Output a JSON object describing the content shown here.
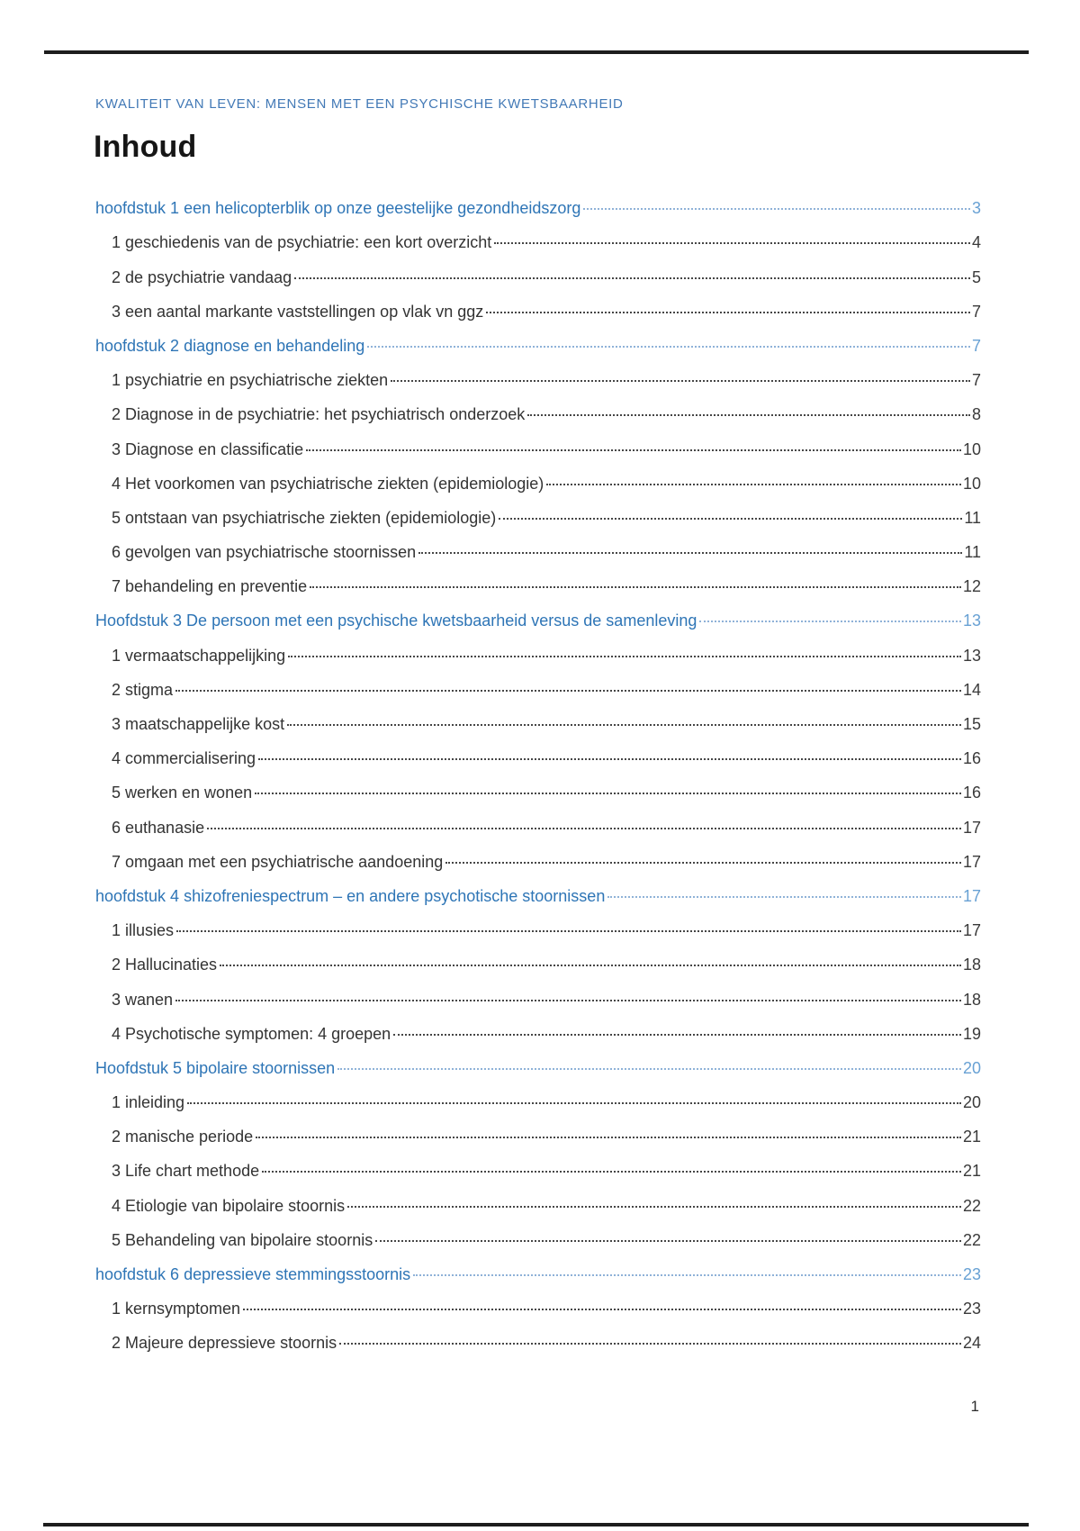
{
  "page": {
    "header": "KWALITEIT VAN LEVEN: MENSEN MET EEN PSYCHISCHE KWETSBAARHEID",
    "title": "Inhoud",
    "footer_page_number": "1"
  },
  "colors": {
    "chapter_blue": "#2E75B6",
    "chapter_page_number_blue": "#68A1D4",
    "header_blue": "#4279B6",
    "body_text": "#333333",
    "rule_dark": "#1D1D1D"
  },
  "toc": {
    "entries": [
      {
        "label": "hoofdstuk 1 een helicopterblik op onze geestelijke gezondheidszorg",
        "page": "3",
        "level": "chapter"
      },
      {
        "label": "1 geschiedenis van de psychiatrie: een kort overzicht",
        "page": "4",
        "level": "sub"
      },
      {
        "label": "2 de psychiatrie vandaag",
        "page": "5",
        "level": "sub"
      },
      {
        "label": "3 een aantal markante vaststellingen op vlak vn ggz",
        "page": "7",
        "level": "sub"
      },
      {
        "label": "hoofdstuk 2 diagnose en behandeling",
        "page": "7",
        "level": "chapter"
      },
      {
        "label": "1 psychiatrie en psychiatrische ziekten",
        "page": "7",
        "level": "sub"
      },
      {
        "label": "2 Diagnose in de psychiatrie: het psychiatrisch onderzoek",
        "page": "8",
        "level": "sub"
      },
      {
        "label": "3 Diagnose en classificatie",
        "page": "10",
        "level": "sub"
      },
      {
        "label": "4 Het voorkomen van psychiatrische ziekten (epidemiologie)",
        "page": "10",
        "level": "sub"
      },
      {
        "label": "5 ontstaan van psychiatrische ziekten (epidemiologie)",
        "page": "11",
        "level": "sub"
      },
      {
        "label": "6 gevolgen van psychiatrische stoornissen",
        "page": "11",
        "level": "sub"
      },
      {
        "label": "7 behandeling en preventie",
        "page": "12",
        "level": "sub"
      },
      {
        "label": "Hoofdstuk 3 De persoon met een psychische kwetsbaarheid versus de samenleving",
        "page": "13",
        "level": "chapter"
      },
      {
        "label": "1 vermaatschappelijking",
        "page": "13",
        "level": "sub"
      },
      {
        "label": "2 stigma",
        "page": "14",
        "level": "sub"
      },
      {
        "label": "3 maatschappelijke kost",
        "page": "15",
        "level": "sub"
      },
      {
        "label": "4 commercialisering",
        "page": "16",
        "level": "sub"
      },
      {
        "label": "5 werken en wonen",
        "page": "16",
        "level": "sub"
      },
      {
        "label": "6 euthanasie",
        "page": "17",
        "level": "sub"
      },
      {
        "label": "7 omgaan met een psychiatrische aandoening",
        "page": "17",
        "level": "sub"
      },
      {
        "label": "hoofdstuk 4 shizofreniespectrum – en andere psychotische stoornissen",
        "page": "17",
        "level": "chapter"
      },
      {
        "label": "1 illusies",
        "page": "17",
        "level": "sub"
      },
      {
        "label": "2 Hallucinaties",
        "page": "18",
        "level": "sub"
      },
      {
        "label": "3 wanen",
        "page": "18",
        "level": "sub"
      },
      {
        "label": "4 Psychotische symptomen: 4 groepen",
        "page": "19",
        "level": "sub"
      },
      {
        "label": "Hoofdstuk 5 bipolaire stoornissen",
        "page": "20",
        "level": "chapter"
      },
      {
        "label": "1 inleiding",
        "page": "20",
        "level": "sub"
      },
      {
        "label": "2 manische periode",
        "page": "21",
        "level": "sub"
      },
      {
        "label": "3 Life chart methode",
        "page": "21",
        "level": "sub"
      },
      {
        "label": "4 Etiologie van bipolaire stoornis",
        "page": "22",
        "level": "sub"
      },
      {
        "label": "5 Behandeling van bipolaire stoornis",
        "page": "22",
        "level": "sub"
      },
      {
        "label": "hoofdstuk 6 depressieve stemmingsstoornis",
        "page": "23",
        "level": "chapter"
      },
      {
        "label": "1 kernsymptomen",
        "page": "23",
        "level": "sub"
      },
      {
        "label": "2 Majeure depressieve stoornis",
        "page": "24",
        "level": "sub"
      }
    ]
  }
}
